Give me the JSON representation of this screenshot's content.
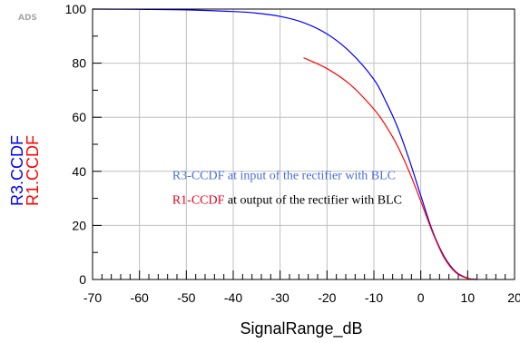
{
  "logo_text": "ADS",
  "chart_data": {
    "type": "line",
    "title": "",
    "xlabel": "SignalRange_dB",
    "ylabels": [
      "R3.CCDF",
      "R1.CCDF"
    ],
    "xlim": [
      -70,
      20
    ],
    "ylim": [
      0,
      100
    ],
    "x_ticks": [
      "-70",
      "-60",
      "-50",
      "-40",
      "-30",
      "-20",
      "-10",
      "0",
      "10",
      "20"
    ],
    "y_ticks": [
      "0",
      "20",
      "40",
      "60",
      "80",
      "100"
    ],
    "grid": true,
    "series": [
      {
        "name": "R3.CCDF",
        "color": "#0000ff",
        "x": [
          -70,
          -60,
          -50,
          -40,
          -35,
          -30,
          -25,
          -20,
          -15,
          -10,
          -7.5,
          -5,
          -2.5,
          0,
          2.5,
          5,
          7.5,
          10,
          12
        ],
        "y": [
          100,
          99.9,
          99.7,
          99.1,
          98.5,
          97.3,
          95.0,
          90.8,
          84.0,
          74.0,
          66.0,
          56.5,
          44.5,
          31.0,
          18.0,
          8.5,
          2.8,
          0.5,
          0
        ]
      },
      {
        "name": "R1.CCDF",
        "color": "#ff0000",
        "x": [
          -25,
          -20,
          -15,
          -10,
          -7.5,
          -5,
          -2.5,
          0,
          2.5,
          5,
          7.5,
          10,
          12
        ],
        "y": [
          82,
          78.0,
          72.0,
          63.0,
          57.0,
          49.5,
          40.0,
          29.0,
          17.5,
          8.0,
          2.5,
          0.4,
          0
        ]
      }
    ],
    "annotations": [
      {
        "parts": [
          {
            "text": "R3-CCDF at input of the rectifier with BLC",
            "color": "#4a6fd8"
          }
        ]
      },
      {
        "parts": [
          {
            "text": "R1-CCDF",
            "color": "#e8001c"
          },
          {
            "text": " at output of the rectifier with BLC",
            "color": "#000000"
          }
        ]
      }
    ]
  }
}
